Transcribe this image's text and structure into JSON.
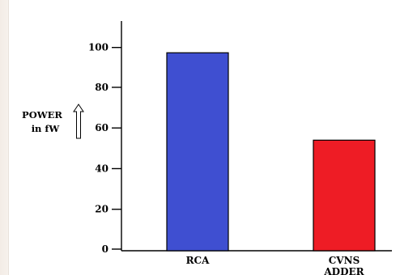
{
  "chart_data": {
    "type": "bar",
    "categories": [
      "RCA",
      "CVNS\nADDER"
    ],
    "values": [
      97,
      54
    ],
    "colors": [
      "#3f4fd1",
      "#ee1c25"
    ],
    "ylabel_lines": [
      "POWER",
      "in fW"
    ],
    "ylabel_icon": "up-arrow-icon",
    "yticks": [
      0,
      20,
      40,
      60,
      80,
      100
    ],
    "ylim": [
      0,
      115
    ],
    "grid": false,
    "legend": "none"
  }
}
